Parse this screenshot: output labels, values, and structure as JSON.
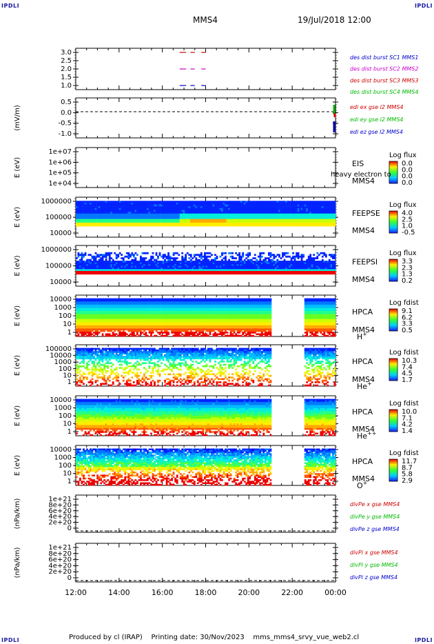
{
  "header": {
    "corner_logo": "IPDLI",
    "spacecraft": "MMS4",
    "date_time": "19/Jul/2018 12:00"
  },
  "footer": {
    "text": "Produced by cl (IRAP)    Printing date: 30/Nov/2023    mms_mms4_srvy_vue_web2.cl"
  },
  "panels": [
    {
      "id": "burst",
      "ylabel": "",
      "y_ticks": [
        "3.0",
        "2.5",
        "2.0",
        "1.5",
        "1.0"
      ],
      "legend": [
        {
          "text": "des dist burst SC1 MMS1",
          "color": "#0000cc"
        },
        {
          "text": "des dist burst SC2 MMS2",
          "color": "#cc00cc"
        },
        {
          "text": "des dist burst SC3 MMS3",
          "color": "#cc0000"
        },
        {
          "text": "des dist burst SC4 MMS4",
          "color": "#00bb00"
        }
      ]
    },
    {
      "id": "edi",
      "ylabel": "(mV/m)",
      "y_ticks": [
        "0.5",
        "0.0",
        "-0.5",
        "-1.0"
      ],
      "legend": [
        {
          "text": "edi ex gse l2 MMS4",
          "color": "#cc0000"
        },
        {
          "text": "edi ey gse l2 MMS4",
          "color": "#00bb00"
        },
        {
          "text": "edi ez gse l2 MMS4",
          "color": "#0000cc"
        }
      ]
    },
    {
      "id": "eis",
      "ylabel": "E (eV)",
      "y_ticks": [
        "1e+07",
        "1e+06",
        "1e+05",
        "1e+04"
      ],
      "instrument": [
        "EIS",
        "MMS4"
      ],
      "overlay": "heavy electron to",
      "colorbar": {
        "title": "Log flux",
        "ticks": [
          "0.0",
          "0.0",
          "0.0",
          "0.0"
        ]
      }
    },
    {
      "id": "feepse",
      "ylabel": "E (eV)",
      "y_ticks": [
        "1000000",
        "100000",
        "10000"
      ],
      "instrument": [
        "FEEPSE",
        "MMS4"
      ],
      "colorbar": {
        "title": "Log flux",
        "ticks": [
          "4.0",
          "2.5",
          "1.0",
          "-0.5"
        ]
      }
    },
    {
      "id": "feepsi",
      "ylabel": "E (eV)",
      "y_ticks": [
        "1000000",
        "100000",
        "10000"
      ],
      "instrument": [
        "FEEPSI",
        "MMS4"
      ],
      "colorbar": {
        "title": "Log flux",
        "ticks": [
          "3.3",
          "2.3",
          "1.3",
          "0.2"
        ]
      }
    },
    {
      "id": "hpca_h",
      "ylabel": "E (eV)",
      "y_ticks": [
        "10000",
        "1000",
        "100",
        "10",
        "1"
      ],
      "instrument": [
        "HPCA",
        "MMS4"
      ],
      "species": "H",
      "species_sup": "+",
      "colorbar": {
        "title": "Log fdist",
        "ticks": [
          "9.1",
          "6.2",
          "3.3",
          "0.5"
        ]
      }
    },
    {
      "id": "hpca_he1",
      "ylabel": "E (eV)",
      "y_ticks": [
        "100000",
        "10000",
        "1000",
        "100",
        "10",
        "1"
      ],
      "instrument": [
        "HPCA",
        "MMS4"
      ],
      "species": "He",
      "species_sup": "+",
      "colorbar": {
        "title": "Log fdist",
        "ticks": [
          "10.3",
          "7.4",
          "4.5",
          "1.7"
        ]
      }
    },
    {
      "id": "hpca_he2",
      "ylabel": "E (eV)",
      "y_ticks": [
        "10000",
        "1000",
        "100",
        "10",
        "1"
      ],
      "instrument": [
        "HPCA",
        "MMS4"
      ],
      "species": "He",
      "species_sup": "++",
      "colorbar": {
        "title": "Log fdist",
        "ticks": [
          "10.0",
          "7.1",
          "4.2",
          "1.4"
        ]
      }
    },
    {
      "id": "hpca_o",
      "ylabel": "E (eV)",
      "y_ticks": [
        "10000",
        "1000",
        "100",
        "10",
        "1"
      ],
      "instrument": [
        "HPCA",
        "MMS4"
      ],
      "species": "O",
      "species_sup": "+",
      "colorbar": {
        "title": "Log fdist",
        "ticks": [
          "11.7",
          "8.7",
          "5.8",
          "2.9"
        ]
      }
    },
    {
      "id": "divpe",
      "ylabel": "(nPa/km)",
      "y_ticks": [
        "1e+21",
        "8e+20",
        "6e+20",
        "4e+20",
        "2e+20",
        "0"
      ],
      "legend": [
        {
          "text": "divPe x gse MMS4",
          "color": "#cc0000"
        },
        {
          "text": "divPe y gse MMS4",
          "color": "#00bb00"
        },
        {
          "text": "divPe z gse MMS4",
          "color": "#0000cc"
        }
      ]
    },
    {
      "id": "divpi",
      "ylabel": "(nPa/km)",
      "y_ticks": [
        "1e+21",
        "8e+20",
        "6e+20",
        "4e+20",
        "2e+20",
        "0"
      ],
      "legend": [
        {
          "text": "divPi x gse MMS4",
          "color": "#cc0000"
        },
        {
          "text": "divPi y gse MMS4",
          "color": "#00bb00"
        },
        {
          "text": "divPi z gse MMS4",
          "color": "#0000cc"
        }
      ]
    }
  ],
  "x_axis": {
    "ticks": [
      "12:00",
      "14:00",
      "16:00",
      "18:00",
      "20:00",
      "22:00",
      "00:00"
    ],
    "range_hours": [
      12,
      24
    ]
  },
  "chart_data": {
    "type": "heatmap",
    "title": "MMS4",
    "xlabel": "",
    "time_range": [
      "12:00",
      "00:00"
    ],
    "data_gaps_hours": [
      [
        21.0,
        22.6
      ]
    ],
    "burst_intervals_hours": {
      "SC1": [
        [
          16.8,
          17.1
        ],
        [
          17.3,
          17.5
        ],
        [
          17.8,
          18.0
        ]
      ],
      "SC2": [
        [
          16.8,
          17.1
        ],
        [
          17.3,
          17.5
        ],
        [
          17.8,
          18.0
        ]
      ],
      "SC3": [
        [
          16.8,
          17.1
        ],
        [
          17.3,
          17.5
        ],
        [
          17.8,
          18.0
        ]
      ]
    },
    "colorbar_ranges": {
      "FEEPSE": [
        -0.5,
        4.0
      ],
      "FEEPSI": [
        0.2,
        3.3
      ],
      "HPCA_H+": [
        0.5,
        9.1
      ],
      "HPCA_He+": [
        1.7,
        10.3
      ],
      "HPCA_He++": [
        1.4,
        10.0
      ],
      "HPCA_O+": [
        2.9,
        11.7
      ]
    }
  }
}
